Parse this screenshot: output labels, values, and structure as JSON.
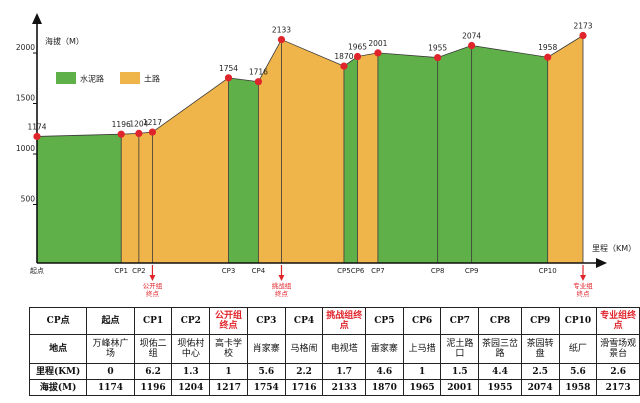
{
  "chart_data": {
    "type": "area",
    "ylabel": "海拔（M）",
    "xlabel": "里程（KM）",
    "yticks": [
      500,
      1000,
      1500,
      2000
    ],
    "ylim": [
      0,
      2300
    ],
    "legend": [
      {
        "name": "水泥路",
        "color": "#5fb048"
      },
      {
        "name": "土路",
        "color": "#f0b54a"
      }
    ],
    "legend_placement": "top-left",
    "points": [
      {
        "label": "起点",
        "altitude": 1174,
        "cumulative_km": 0,
        "surface_to_next": "水泥路"
      },
      {
        "label": "CP1",
        "altitude": 1196,
        "cumulative_km": 6.2,
        "surface_to_next": "土路"
      },
      {
        "label": "CP2",
        "altitude": 1204,
        "cumulative_km": 7.5,
        "surface_to_next": "土路"
      },
      {
        "label": "",
        "altitude": 1217,
        "cumulative_km": 8.5,
        "surface_to_next": "土路",
        "annotation": [
          "公开组",
          "终点"
        ]
      },
      {
        "label": "CP3",
        "altitude": 1754,
        "cumulative_km": 14.1,
        "surface_to_next": "水泥路"
      },
      {
        "label": "CP4",
        "altitude": 1716,
        "cumulative_km": 16.3,
        "surface_to_next": "土路"
      },
      {
        "label": "",
        "altitude": 2133,
        "cumulative_km": 18.0,
        "surface_to_next": "土路",
        "annotation": [
          "挑战组",
          "终点"
        ]
      },
      {
        "label": "CP5",
        "altitude": 1870,
        "cumulative_km": 22.6,
        "surface_to_next": "水泥路"
      },
      {
        "label": "CP6",
        "altitude": 1965,
        "cumulative_km": 23.6,
        "surface_to_next": "土路"
      },
      {
        "label": "CP7",
        "altitude": 2001,
        "cumulative_km": 25.1,
        "surface_to_next": "水泥路"
      },
      {
        "label": "CP8",
        "altitude": 1955,
        "cumulative_km": 29.5,
        "surface_to_next": "水泥路"
      },
      {
        "label": "CP9",
        "altitude": 2074,
        "cumulative_km": 32.0,
        "surface_to_next": "水泥路"
      },
      {
        "label": "CP10",
        "altitude": 1958,
        "cumulative_km": 37.6,
        "surface_to_next": "土路"
      },
      {
        "label": "",
        "altitude": 2173,
        "cumulative_km": 40.2,
        "surface_to_next": null,
        "annotation": [
          "专业组",
          "终点"
        ]
      }
    ],
    "colors": {
      "cement": "#5fb048",
      "dirt": "#f0b54a",
      "point": "#e0242b",
      "annotation": "#e0242b"
    }
  },
  "table": {
    "headers": [
      "CP点",
      "起点",
      "CP1",
      "CP2",
      "公开组终点",
      "CP3",
      "CP4",
      "挑战组终点",
      "CP5",
      "CP6",
      "CP7",
      "CP8",
      "CP9",
      "CP10",
      "专业组终点"
    ],
    "header_red": [
      false,
      false,
      false,
      false,
      true,
      false,
      false,
      true,
      false,
      false,
      false,
      false,
      false,
      false,
      true
    ],
    "location_label": "地点",
    "locations": [
      "万峰林广场",
      "坝佑二组",
      "坝佑村中心",
      "高卡学校",
      "肖家寨",
      "马格闹",
      "电视塔",
      "雷家寨",
      "上马措",
      "泥土路口",
      "茶园三岔路",
      "茶园转盘",
      "纸厂",
      "滑雪场观景台"
    ],
    "km_label": "里程(KM)",
    "km": [
      "0",
      "6.2",
      "1.3",
      "1",
      "5.6",
      "2.2",
      "1.7",
      "4.6",
      "1",
      "1.5",
      "4.4",
      "2.5",
      "5.6",
      "2.6"
    ],
    "alt_label": "海拔(M)",
    "altitudes": [
      "1174",
      "1196",
      "1204",
      "1217",
      "1754",
      "1716",
      "2133",
      "1870",
      "1965",
      "2001",
      "1955",
      "2074",
      "1958",
      "2173"
    ]
  }
}
